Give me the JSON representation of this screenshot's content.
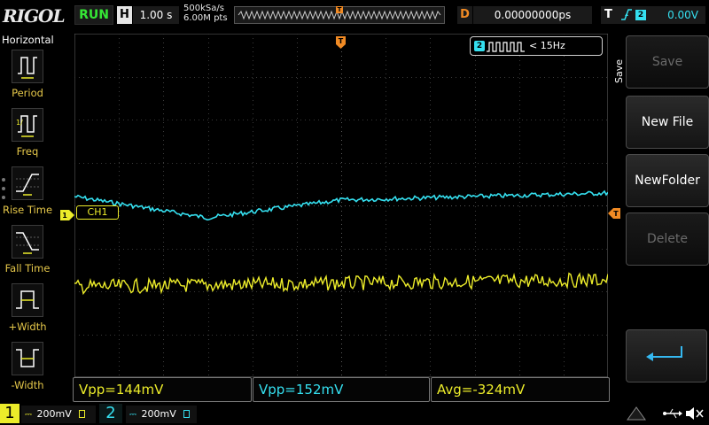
{
  "brand": {
    "logo": "RIGOL"
  },
  "status": {
    "run": "RUN"
  },
  "horizontal": {
    "label": "H",
    "timebase": "1.00 s",
    "sample_rate": "500kSa/s",
    "mem_depth": "6.00M pts"
  },
  "delay": {
    "label": "D",
    "value": "0.00000000ps"
  },
  "trigger": {
    "label": "T",
    "source": "2",
    "level": "0.00V",
    "marker": "T",
    "slope_icon": "rising-edge-icon"
  },
  "left_menu": {
    "title": "Horizontal",
    "items": [
      {
        "label": "Period",
        "icon": "period-icon"
      },
      {
        "label": "Freq",
        "icon": "freq-icon"
      },
      {
        "label": "Rise Time",
        "icon": "rise-time-icon"
      },
      {
        "label": "Fall Time",
        "icon": "fall-time-icon"
      },
      {
        "label": "+Width",
        "icon": "positive-width-icon"
      },
      {
        "label": "-Width",
        "icon": "negative-width-icon"
      }
    ]
  },
  "counter": {
    "channel": "2",
    "value": "< 15Hz"
  },
  "channel_tag": {
    "label": "CH1",
    "marker": "1"
  },
  "measurements": [
    {
      "text": "Vpp=144mV",
      "color": "#ecec2a"
    },
    {
      "text": "Vpp=152mV",
      "color": "#35e0f0"
    },
    {
      "text": "Avg=-324mV",
      "color": "#ecec2a"
    }
  ],
  "right_menu": {
    "title": "Save",
    "buttons": [
      {
        "label": "Save",
        "enabled": false
      },
      {
        "label": "New File",
        "enabled": true
      },
      {
        "label": "NewFolder",
        "enabled": true
      },
      {
        "label": "Delete",
        "enabled": false
      }
    ],
    "return_icon": "return-icon"
  },
  "channels": [
    {
      "number": "1",
      "scale": "200mV",
      "color": "#ecec2a"
    },
    {
      "number": "2",
      "scale": "200mV",
      "color": "#35e0f0"
    }
  ],
  "colors": {
    "ch1": "#ecec2a",
    "ch2": "#35e0f0",
    "accent": "#f08a24",
    "run": "#35e635"
  }
}
